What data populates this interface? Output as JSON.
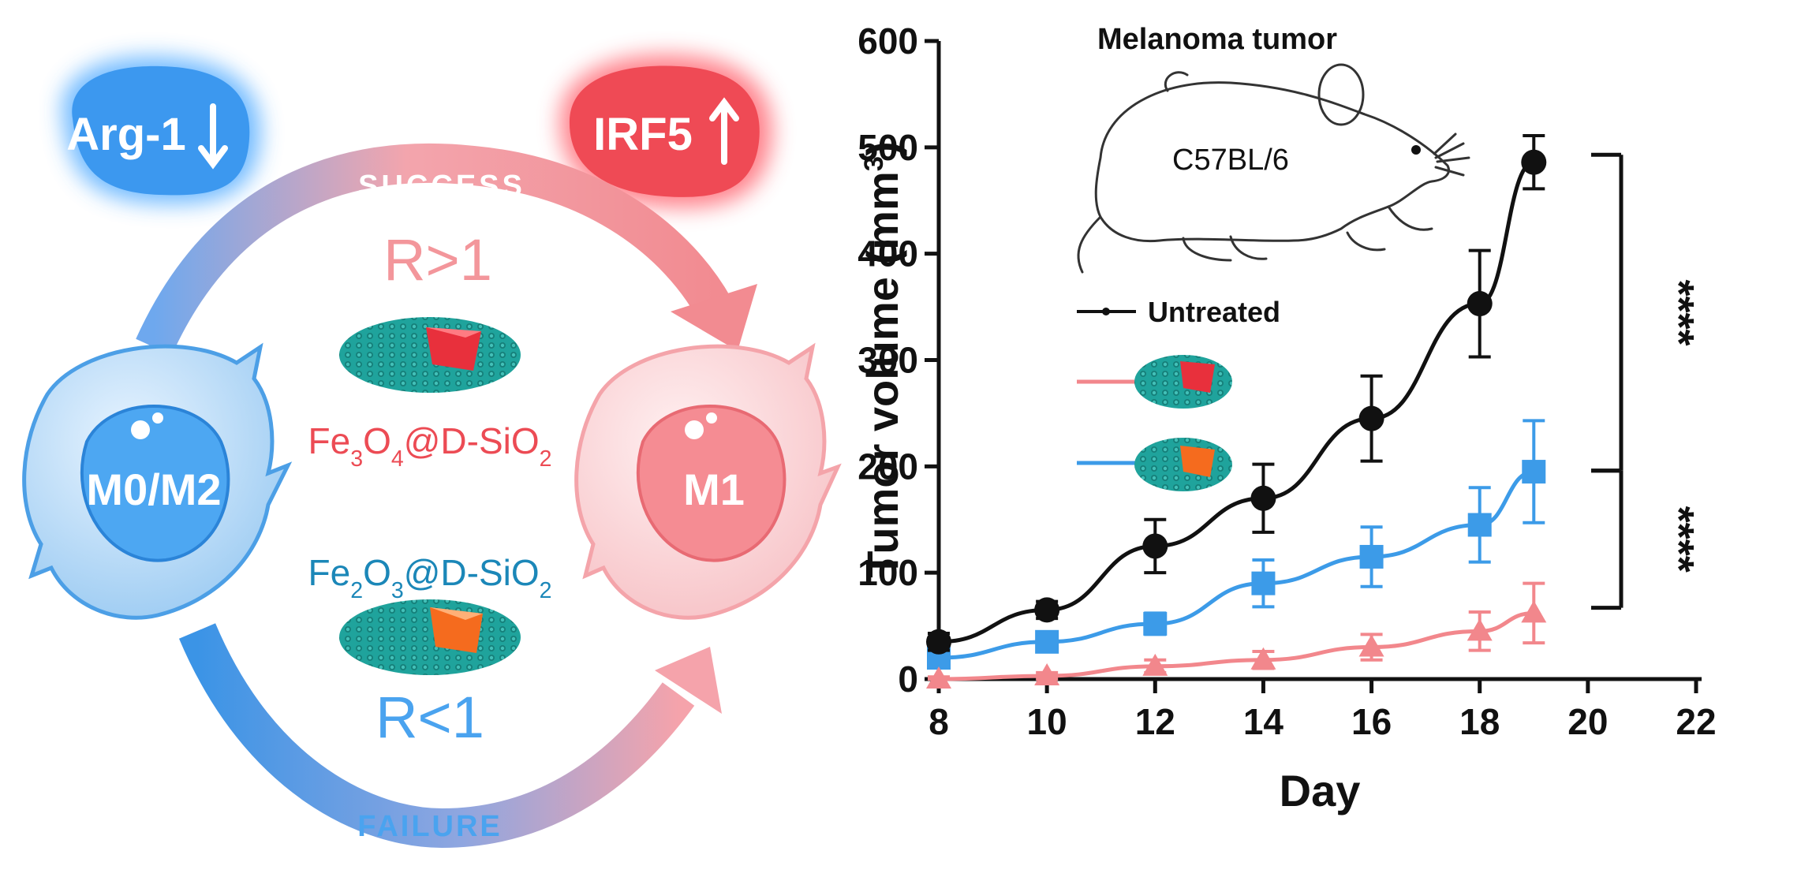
{
  "schematic": {
    "arg1_label": "Arg-1",
    "irf5_label": "IRF5",
    "success_label": "SUCCESS",
    "failure_label": "FAILURE",
    "r_gt_label": "R>1",
    "r_lt_label": "R<1",
    "m0m2_label": "M0/M2",
    "m1_label": "M1",
    "fe3o4_label": {
      "a": "Fe",
      "b": "3",
      "c": "O",
      "d": "4",
      "e": "@D-SiO",
      "f": "2"
    },
    "fe2o3_label": {
      "a": "Fe",
      "b": "2",
      "c": "O",
      "d": "3",
      "e": "@D-SiO",
      "f": "2"
    },
    "colors": {
      "blue": "#3d9be9",
      "pink": "#f07f86",
      "red": "#ec4b54",
      "teal": "#1fa39c",
      "orange": "#f56b1e"
    }
  },
  "chart_data": {
    "type": "line",
    "title": "Melanoma tumor",
    "annotation": "C57BL/6",
    "xlabel": "Day",
    "ylabel": {
      "main": "Tumor volume (mm",
      "sup": "3",
      "end": ")"
    },
    "xlim": [
      8,
      22
    ],
    "ylim": [
      0,
      600
    ],
    "xticks": [
      8,
      10,
      12,
      14,
      16,
      18,
      20,
      22
    ],
    "yticks": [
      0,
      100,
      200,
      300,
      400,
      500,
      600
    ],
    "x": [
      8,
      10,
      12,
      14,
      16,
      18,
      19
    ],
    "series": [
      {
        "name": "Untreated",
        "marker": "circle",
        "color": "#111111",
        "values": [
          35,
          65,
          125,
          170,
          245,
          353,
          486
        ],
        "errors": [
          8,
          8,
          25,
          32,
          40,
          50,
          25
        ]
      },
      {
        "name": "Fe3O4@D-SiO2",
        "marker": "triangle",
        "color": "#f2878c",
        "values": [
          0,
          3,
          12,
          18,
          30,
          45,
          62
        ],
        "errors": [
          2,
          3,
          6,
          8,
          12,
          18,
          28
        ]
      },
      {
        "name": "Fe2O3@D-SiO2",
        "marker": "square",
        "color": "#3c9be8",
        "values": [
          20,
          35,
          52,
          90,
          115,
          145,
          195
        ],
        "errors": [
          5,
          8,
          10,
          22,
          28,
          35,
          48
        ]
      }
    ],
    "significance": [
      {
        "label": "****",
        "from": 493,
        "to": 196
      },
      {
        "label": "****",
        "from": 196,
        "to": 67
      }
    ]
  }
}
